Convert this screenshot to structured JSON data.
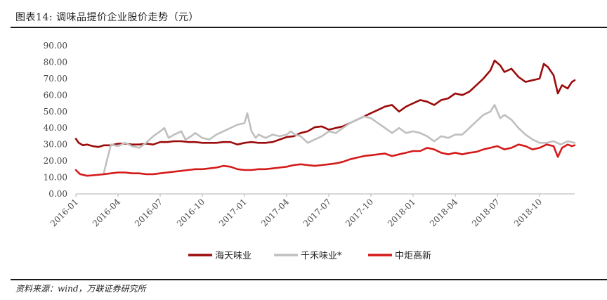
{
  "header": {
    "title": "图表14:  调味品提价企业股价走势（元）"
  },
  "footer": {
    "source": "资料来源：wind，万联证券研究所"
  },
  "chart_data": {
    "type": "line",
    "title": "图表14:  调味品提价企业股价走势（元）",
    "xlabel": "",
    "ylabel": "",
    "ylim": [
      0,
      90
    ],
    "y_ticks": [
      "0.00",
      "10.00",
      "20.00",
      "30.00",
      "40.00",
      "50.00",
      "60.00",
      "70.00",
      "80.00",
      "90.00"
    ],
    "x_ticks": [
      "2016-01",
      "2016-04",
      "2016-07",
      "2016-10",
      "2017-01",
      "2017-04",
      "2017-07",
      "2017-10",
      "2018-01",
      "2018-04",
      "2018-07",
      "2018-10"
    ],
    "x_range": [
      0,
      35.5
    ],
    "grid": false,
    "legend_position": "bottom",
    "colors": {
      "haitian": "#9b0b0b",
      "qianhe": "#bfbfbf",
      "zhongju": "#d51a1a",
      "axis": "#b0b0b0",
      "rule": "#1a1a1a"
    },
    "series": [
      {
        "name": "海天味业",
        "color": "#9b0b0b",
        "points": [
          [
            0,
            33.5
          ],
          [
            0.2,
            31
          ],
          [
            0.5,
            29.5
          ],
          [
            0.8,
            30
          ],
          [
            1.2,
            29
          ],
          [
            1.6,
            28.5
          ],
          [
            2.0,
            29.5
          ],
          [
            2.5,
            29.5
          ],
          [
            3.0,
            30.5
          ],
          [
            3.5,
            30.5
          ],
          [
            4.0,
            30
          ],
          [
            4.5,
            30
          ],
          [
            5.0,
            30.5
          ],
          [
            5.5,
            30
          ],
          [
            6.0,
            31.5
          ],
          [
            6.5,
            31.5
          ],
          [
            7.0,
            32
          ],
          [
            7.5,
            32
          ],
          [
            8.0,
            31.5
          ],
          [
            8.5,
            31.5
          ],
          [
            9.0,
            31
          ],
          [
            9.5,
            31
          ],
          [
            10.0,
            31
          ],
          [
            10.5,
            31.5
          ],
          [
            11.0,
            31.5
          ],
          [
            11.5,
            30
          ],
          [
            12.0,
            31
          ],
          [
            12.5,
            31.5
          ],
          [
            13.0,
            31
          ],
          [
            13.5,
            31
          ],
          [
            14.0,
            31.5
          ],
          [
            14.5,
            33
          ],
          [
            15.0,
            34.5
          ],
          [
            15.5,
            35
          ],
          [
            16.0,
            37
          ],
          [
            16.5,
            38
          ],
          [
            17.0,
            40.5
          ],
          [
            17.5,
            41
          ],
          [
            18.0,
            39
          ],
          [
            18.5,
            40
          ],
          [
            19.0,
            41
          ],
          [
            19.5,
            43
          ],
          [
            20.0,
            45
          ],
          [
            20.5,
            47
          ],
          [
            21.0,
            49
          ],
          [
            21.5,
            51
          ],
          [
            22.0,
            53
          ],
          [
            22.5,
            54
          ],
          [
            23.0,
            50
          ],
          [
            23.5,
            53
          ],
          [
            24.0,
            55
          ],
          [
            24.5,
            57
          ],
          [
            25.0,
            56
          ],
          [
            25.5,
            54
          ],
          [
            26.0,
            57
          ],
          [
            26.5,
            58
          ],
          [
            27.0,
            61
          ],
          [
            27.5,
            60
          ],
          [
            28.0,
            62
          ],
          [
            28.5,
            66
          ],
          [
            29.0,
            70
          ],
          [
            29.5,
            75
          ],
          [
            29.8,
            81
          ],
          [
            30.2,
            78
          ],
          [
            30.5,
            74
          ],
          [
            31.0,
            76
          ],
          [
            31.5,
            71
          ],
          [
            32.0,
            68
          ],
          [
            32.5,
            69
          ],
          [
            33.0,
            70
          ],
          [
            33.3,
            79
          ],
          [
            33.6,
            77
          ],
          [
            34.0,
            72
          ],
          [
            34.3,
            61
          ],
          [
            34.6,
            66
          ],
          [
            35.0,
            64
          ],
          [
            35.3,
            68
          ],
          [
            35.5,
            69
          ]
        ]
      },
      {
        "name": "千禾味业*",
        "color": "#bfbfbf",
        "points": [
          [
            2.0,
            13
          ],
          [
            2.2,
            20
          ],
          [
            2.5,
            30
          ],
          [
            3.0,
            29
          ],
          [
            3.5,
            31
          ],
          [
            4.0,
            29
          ],
          [
            4.5,
            28
          ],
          [
            5.0,
            31
          ],
          [
            5.5,
            35
          ],
          [
            6.0,
            38
          ],
          [
            6.3,
            40
          ],
          [
            6.6,
            34
          ],
          [
            7.0,
            36
          ],
          [
            7.5,
            38
          ],
          [
            7.8,
            33
          ],
          [
            8.2,
            35
          ],
          [
            8.5,
            37
          ],
          [
            9.0,
            34
          ],
          [
            9.5,
            33
          ],
          [
            10.0,
            36
          ],
          [
            10.5,
            38
          ],
          [
            11.0,
            40
          ],
          [
            11.5,
            42
          ],
          [
            12.0,
            43
          ],
          [
            12.2,
            49
          ],
          [
            12.5,
            38
          ],
          [
            12.8,
            34
          ],
          [
            13.0,
            36
          ],
          [
            13.5,
            34
          ],
          [
            14.0,
            36
          ],
          [
            14.5,
            35
          ],
          [
            15.0,
            36
          ],
          [
            15.3,
            38
          ],
          [
            15.6,
            36
          ],
          [
            16.0,
            35
          ],
          [
            16.5,
            31
          ],
          [
            17.0,
            33
          ],
          [
            17.5,
            35
          ],
          [
            18.0,
            38
          ],
          [
            18.5,
            37
          ],
          [
            19.0,
            40
          ],
          [
            19.5,
            43
          ],
          [
            20.0,
            45
          ],
          [
            20.5,
            47
          ],
          [
            21.0,
            46
          ],
          [
            21.5,
            43
          ],
          [
            22.0,
            40
          ],
          [
            22.5,
            37
          ],
          [
            23.0,
            40
          ],
          [
            23.5,
            37
          ],
          [
            24.0,
            38
          ],
          [
            24.5,
            37
          ],
          [
            25.0,
            35
          ],
          [
            25.5,
            32
          ],
          [
            26.0,
            35
          ],
          [
            26.5,
            34
          ],
          [
            27.0,
            36
          ],
          [
            27.5,
            36
          ],
          [
            28.0,
            40
          ],
          [
            28.5,
            44
          ],
          [
            29.0,
            48
          ],
          [
            29.5,
            50
          ],
          [
            29.8,
            54
          ],
          [
            30.2,
            46
          ],
          [
            30.5,
            48
          ],
          [
            31.0,
            45
          ],
          [
            31.5,
            40
          ],
          [
            32.0,
            36
          ],
          [
            32.5,
            33
          ],
          [
            33.0,
            31
          ],
          [
            33.5,
            31
          ],
          [
            34.0,
            32
          ],
          [
            34.5,
            30
          ],
          [
            35.0,
            32
          ],
          [
            35.5,
            31
          ]
        ]
      },
      {
        "name": "中炬高新",
        "color": "#d51a1a",
        "points": [
          [
            0,
            14.5
          ],
          [
            0.3,
            12
          ],
          [
            0.8,
            11
          ],
          [
            1.5,
            11.5
          ],
          [
            2.0,
            12
          ],
          [
            2.5,
            12.5
          ],
          [
            3.0,
            13
          ],
          [
            3.5,
            13
          ],
          [
            4.0,
            12.5
          ],
          [
            4.5,
            12.5
          ],
          [
            5.0,
            12
          ],
          [
            5.5,
            12
          ],
          [
            6.0,
            12.5
          ],
          [
            6.5,
            13
          ],
          [
            7.0,
            13.5
          ],
          [
            7.5,
            14
          ],
          [
            8.0,
            14.5
          ],
          [
            8.5,
            15
          ],
          [
            9.0,
            15
          ],
          [
            9.5,
            15.5
          ],
          [
            10.0,
            16
          ],
          [
            10.5,
            17
          ],
          [
            11.0,
            16.5
          ],
          [
            11.5,
            15
          ],
          [
            12.0,
            14.5
          ],
          [
            12.5,
            14.5
          ],
          [
            13.0,
            15
          ],
          [
            13.5,
            15
          ],
          [
            14.0,
            15.5
          ],
          [
            14.5,
            16
          ],
          [
            15.0,
            16.5
          ],
          [
            15.5,
            17.5
          ],
          [
            16.0,
            18
          ],
          [
            16.5,
            17.5
          ],
          [
            17.0,
            17
          ],
          [
            17.5,
            17.5
          ],
          [
            18.0,
            18
          ],
          [
            18.5,
            18.5
          ],
          [
            19.0,
            19.5
          ],
          [
            19.5,
            21
          ],
          [
            20.0,
            22
          ],
          [
            20.5,
            23
          ],
          [
            21.0,
            23.5
          ],
          [
            21.5,
            24
          ],
          [
            22.0,
            24.5
          ],
          [
            22.5,
            23
          ],
          [
            23.0,
            24
          ],
          [
            23.5,
            25
          ],
          [
            24.0,
            26
          ],
          [
            24.5,
            26
          ],
          [
            25.0,
            28
          ],
          [
            25.5,
            27
          ],
          [
            26.0,
            25
          ],
          [
            26.5,
            24
          ],
          [
            27.0,
            25
          ],
          [
            27.5,
            24
          ],
          [
            28.0,
            25
          ],
          [
            28.5,
            25.5
          ],
          [
            29.0,
            27
          ],
          [
            29.5,
            28
          ],
          [
            30.0,
            29
          ],
          [
            30.5,
            27
          ],
          [
            31.0,
            28
          ],
          [
            31.5,
            30
          ],
          [
            32.0,
            29
          ],
          [
            32.5,
            27
          ],
          [
            33.0,
            28
          ],
          [
            33.5,
            30
          ],
          [
            34.0,
            29
          ],
          [
            34.3,
            22.5
          ],
          [
            34.6,
            28
          ],
          [
            35.0,
            30
          ],
          [
            35.3,
            29
          ],
          [
            35.5,
            29.5
          ]
        ]
      }
    ]
  }
}
